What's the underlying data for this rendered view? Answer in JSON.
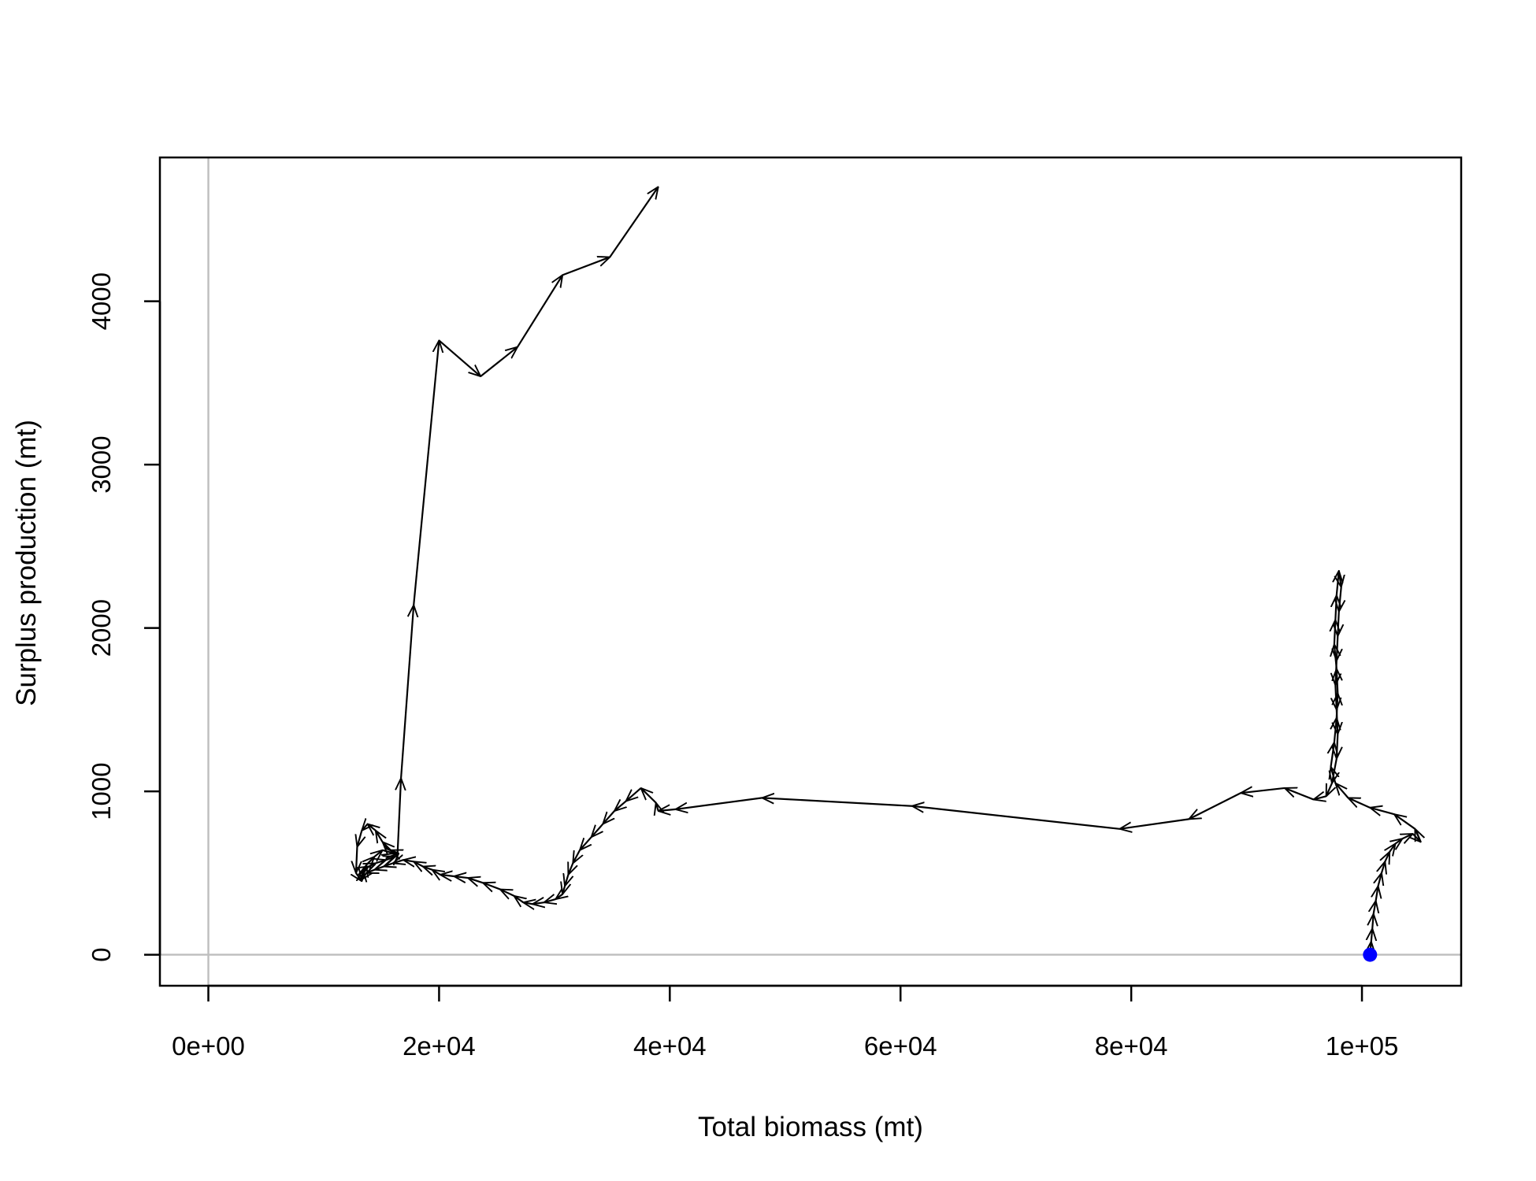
{
  "chart_data": {
    "type": "line",
    "title": "",
    "xlabel": "Total biomass (mt)",
    "ylabel": "Surplus production (mt)",
    "xlim": [
      -4200,
      108600
    ],
    "ylim": [
      -190,
      4880
    ],
    "x_ticks": [
      {
        "value": 0,
        "label": "0e+00"
      },
      {
        "value": 20000,
        "label": "2e+04"
      },
      {
        "value": 40000,
        "label": "4e+04"
      },
      {
        "value": 60000,
        "label": "6e+04"
      },
      {
        "value": 80000,
        "label": "8e+04"
      },
      {
        "value": 100000,
        "label": "1e+05"
      }
    ],
    "y_ticks": [
      {
        "value": 0,
        "label": "0"
      },
      {
        "value": 1000,
        "label": "1000"
      },
      {
        "value": 2000,
        "label": "2000"
      },
      {
        "value": 3000,
        "label": "3000"
      },
      {
        "value": 4000,
        "label": "4000"
      }
    ],
    "reference_lines": {
      "x": 0,
      "y": 0,
      "color": "#bebebe"
    },
    "grid": false,
    "arrow_color": "#000000",
    "start_point": {
      "x": 100700,
      "y": 0,
      "color": "#0000ff"
    },
    "series": [
      {
        "points": [
          [
            100700,
            0
          ],
          [
            100800,
            80
          ],
          [
            100900,
            160
          ],
          [
            101000,
            250
          ],
          [
            101200,
            330
          ],
          [
            101400,
            420
          ],
          [
            101700,
            500
          ],
          [
            102000,
            570
          ],
          [
            102400,
            630
          ],
          [
            102900,
            680
          ],
          [
            103500,
            710
          ],
          [
            104400,
            740
          ],
          [
            105100,
            690
          ],
          [
            104600,
            770
          ],
          [
            102800,
            860
          ],
          [
            100700,
            900
          ],
          [
            98800,
            960
          ],
          [
            97700,
            1050
          ],
          [
            97300,
            1150
          ],
          [
            97600,
            1300
          ],
          [
            97800,
            1450
          ],
          [
            97900,
            1600
          ],
          [
            97800,
            1750
          ],
          [
            97600,
            1900
          ],
          [
            97700,
            2050
          ],
          [
            97800,
            2200
          ],
          [
            98000,
            2350
          ],
          [
            98200,
            2250
          ],
          [
            98000,
            2100
          ],
          [
            97900,
            1950
          ],
          [
            97800,
            1800
          ],
          [
            97700,
            1650
          ],
          [
            97800,
            1500
          ],
          [
            97900,
            1350
          ],
          [
            97800,
            1200
          ],
          [
            97400,
            1050
          ],
          [
            96900,
            970
          ],
          [
            95800,
            950
          ],
          [
            93300,
            1020
          ],
          [
            89500,
            990
          ],
          [
            85000,
            830
          ],
          [
            79000,
            770
          ],
          [
            61000,
            910
          ],
          [
            48000,
            960
          ],
          [
            40500,
            890
          ],
          [
            39000,
            880
          ],
          [
            38800,
            930
          ],
          [
            37500,
            1020
          ],
          [
            36200,
            940
          ],
          [
            35200,
            880
          ],
          [
            34200,
            800
          ],
          [
            33200,
            720
          ],
          [
            32200,
            640
          ],
          [
            31600,
            560
          ],
          [
            31200,
            490
          ],
          [
            30900,
            420
          ],
          [
            30700,
            370
          ],
          [
            30100,
            340
          ],
          [
            29100,
            320
          ],
          [
            28100,
            310
          ],
          [
            27300,
            320
          ],
          [
            26500,
            360
          ],
          [
            25300,
            400
          ],
          [
            23800,
            440
          ],
          [
            22500,
            470
          ],
          [
            21300,
            480
          ],
          [
            20100,
            490
          ],
          [
            19400,
            520
          ],
          [
            18600,
            540
          ],
          [
            17800,
            570
          ],
          [
            16900,
            580
          ],
          [
            16000,
            560
          ],
          [
            15200,
            540
          ],
          [
            14400,
            520
          ],
          [
            13700,
            500
          ],
          [
            13300,
            460
          ],
          [
            13400,
            520
          ],
          [
            13900,
            540
          ],
          [
            14500,
            560
          ],
          [
            15400,
            580
          ],
          [
            16200,
            600
          ],
          [
            16500,
            620
          ],
          [
            15800,
            640
          ],
          [
            15100,
            690
          ],
          [
            14500,
            760
          ],
          [
            13800,
            800
          ],
          [
            13300,
            760
          ],
          [
            12900,
            660
          ],
          [
            12800,
            500
          ],
          [
            13300,
            450
          ],
          [
            13700,
            550
          ],
          [
            14400,
            600
          ],
          [
            15100,
            640
          ],
          [
            16100,
            620
          ],
          [
            16400,
            620
          ],
          [
            16700,
            1080
          ],
          [
            17800,
            2140
          ],
          [
            20000,
            3760
          ],
          [
            23600,
            3540
          ],
          [
            26800,
            3720
          ],
          [
            30700,
            4160
          ],
          [
            34800,
            4270
          ],
          [
            39000,
            4700
          ]
        ]
      }
    ]
  }
}
